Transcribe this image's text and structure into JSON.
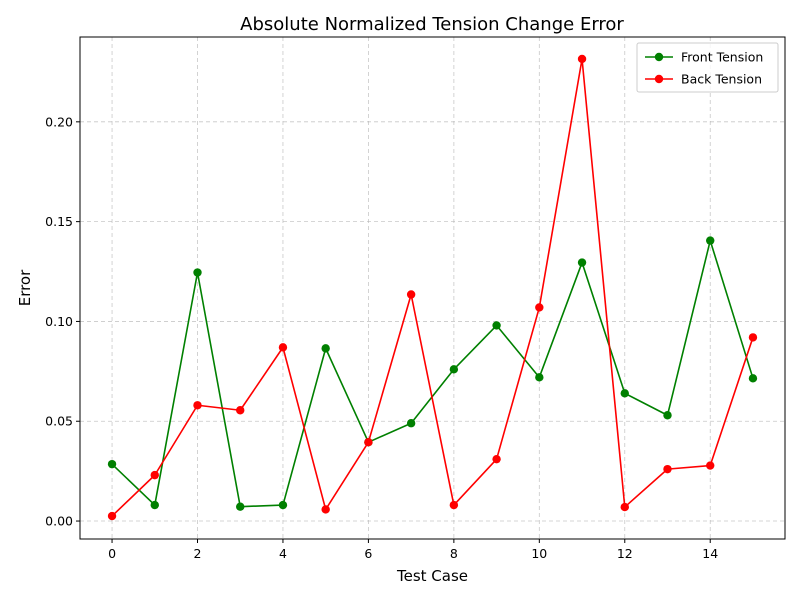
{
  "chart_data": {
    "type": "line",
    "title": "Absolute Normalized Tension Change Error",
    "xlabel": "Test Case",
    "ylabel": "Error",
    "x": [
      0,
      1,
      2,
      3,
      4,
      5,
      6,
      7,
      8,
      9,
      10,
      11,
      12,
      13,
      14,
      15
    ],
    "xlim": [
      -0.75,
      15.75
    ],
    "ylim": [
      -0.009,
      0.2425
    ],
    "xticks": [
      0,
      2,
      4,
      6,
      8,
      10,
      12,
      14
    ],
    "xtick_labels": [
      "0",
      "2",
      "4",
      "6",
      "8",
      "10",
      "12",
      "14"
    ],
    "yticks": [
      0.0,
      0.05,
      0.1,
      0.15,
      0.2
    ],
    "ytick_labels": [
      "0.00",
      "0.05",
      "0.10",
      "0.15",
      "0.20"
    ],
    "grid": true,
    "legend_position": "top-right",
    "series": [
      {
        "name": "Front Tension",
        "color": "#008000",
        "values": [
          0.0285,
          0.008,
          0.1245,
          0.0072,
          0.008,
          0.0865,
          0.0395,
          0.049,
          0.076,
          0.098,
          0.072,
          0.1295,
          0.064,
          0.053,
          0.1405,
          0.0715
        ]
      },
      {
        "name": "Back Tension",
        "color": "#ff0000",
        "values": [
          0.0025,
          0.023,
          0.058,
          0.0555,
          0.087,
          0.0058,
          0.0395,
          0.1135,
          0.008,
          0.031,
          0.107,
          0.2315,
          0.007,
          0.026,
          0.0278,
          0.092
        ]
      }
    ]
  }
}
